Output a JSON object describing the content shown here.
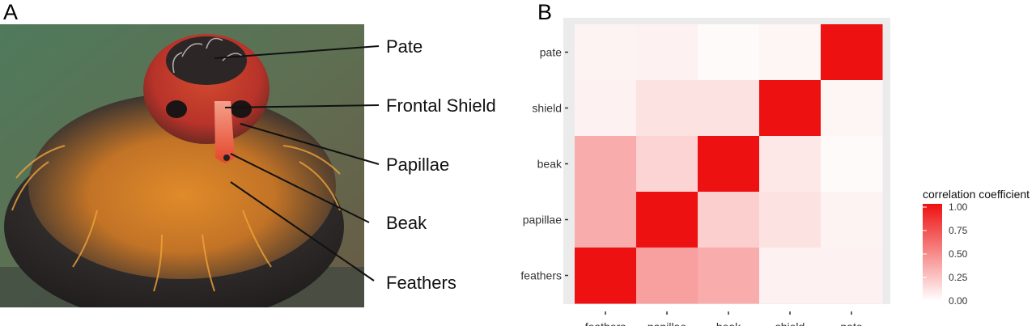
{
  "panel_a": {
    "letter": "A",
    "callouts": [
      "Pate",
      "Frontal Shield",
      "Papillae",
      "Beak",
      "Feathers"
    ]
  },
  "panel_b": {
    "letter": "B"
  },
  "chart_data": {
    "type": "heatmap",
    "x_categories": [
      "feathers",
      "papillae",
      "beak",
      "shield",
      "pate"
    ],
    "y_categories": [
      "pate",
      "shield",
      "beak",
      "papillae",
      "feathers"
    ],
    "values": [
      [
        0.05,
        0.06,
        0.02,
        0.04,
        1.0
      ],
      [
        0.06,
        0.12,
        0.12,
        1.0,
        0.04
      ],
      [
        0.35,
        0.18,
        1.0,
        0.1,
        0.02
      ],
      [
        0.35,
        1.0,
        0.2,
        0.12,
        0.05
      ],
      [
        1.0,
        0.4,
        0.35,
        0.06,
        0.06
      ]
    ],
    "legend": {
      "title": "correlation coefficient",
      "ticks": [
        "1.00",
        "0.75",
        "0.50",
        "0.25",
        "0.00"
      ],
      "range": [
        0,
        1
      ],
      "low_color": "#ffffff",
      "high_color": "#ee1111"
    },
    "panel_background": "#ebebeb"
  }
}
